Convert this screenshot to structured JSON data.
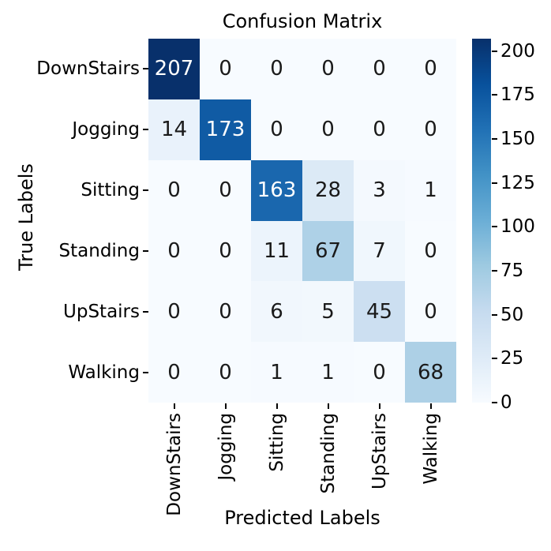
{
  "chart_data": {
    "type": "heatmap",
    "title": "Confusion Matrix",
    "xlabel": "Predicted Labels",
    "ylabel": "True Labels",
    "x_categories": [
      "DownStairs",
      "Jogging",
      "Sitting",
      "Standing",
      "UpStairs",
      "Walking"
    ],
    "y_categories": [
      "DownStairs",
      "Jogging",
      "Sitting",
      "Standing",
      "UpStairs",
      "Walking"
    ],
    "matrix": [
      [
        207,
        0,
        0,
        0,
        0,
        0
      ],
      [
        14,
        173,
        0,
        0,
        0,
        0
      ],
      [
        0,
        0,
        163,
        28,
        3,
        1
      ],
      [
        0,
        0,
        11,
        67,
        7,
        0
      ],
      [
        0,
        0,
        6,
        5,
        45,
        0
      ],
      [
        0,
        0,
        1,
        1,
        0,
        68
      ]
    ],
    "vmin": 0,
    "vmax": 207,
    "colorbar_ticks": [
      0,
      25,
      50,
      75,
      100,
      125,
      150,
      175,
      200
    ],
    "colormap": "Blues",
    "colormap_stops": [
      "#f7fbff",
      "#deebf7",
      "#c6dbef",
      "#9ecae1",
      "#6baed6",
      "#4292c6",
      "#2171b5",
      "#08519c",
      "#08306b"
    ],
    "annotation_colors": {
      "dark": "#1a1a1a",
      "light": "#ffffff"
    },
    "grid": false,
    "legend": "colorbar-right"
  }
}
